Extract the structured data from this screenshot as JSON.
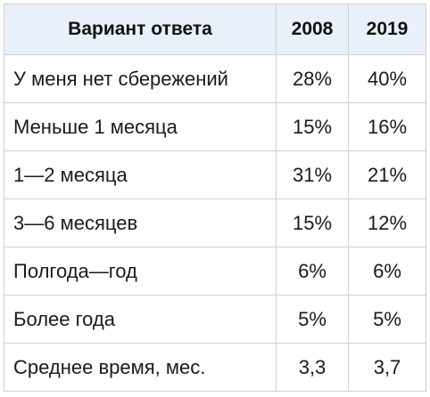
{
  "table": {
    "headers": [
      "Вариант ответа",
      "2008",
      "2019"
    ],
    "rows": [
      [
        "У меня нет сбережений",
        "28%",
        "40%"
      ],
      [
        "Меньше 1 месяца",
        "15%",
        "16%"
      ],
      [
        "1—2 месяца",
        "31%",
        "21%"
      ],
      [
        "3—6 месяцев",
        "15%",
        "12%"
      ],
      [
        "Полгода—год",
        "6%",
        "6%"
      ],
      [
        "Более года",
        "5%",
        "5%"
      ],
      [
        "Среднее время, мес.",
        "3,3",
        "3,7"
      ]
    ]
  },
  "colors": {
    "header_bg": "#eaf0f9",
    "border": "#cfcfcf",
    "text": "#1a1a1a"
  }
}
